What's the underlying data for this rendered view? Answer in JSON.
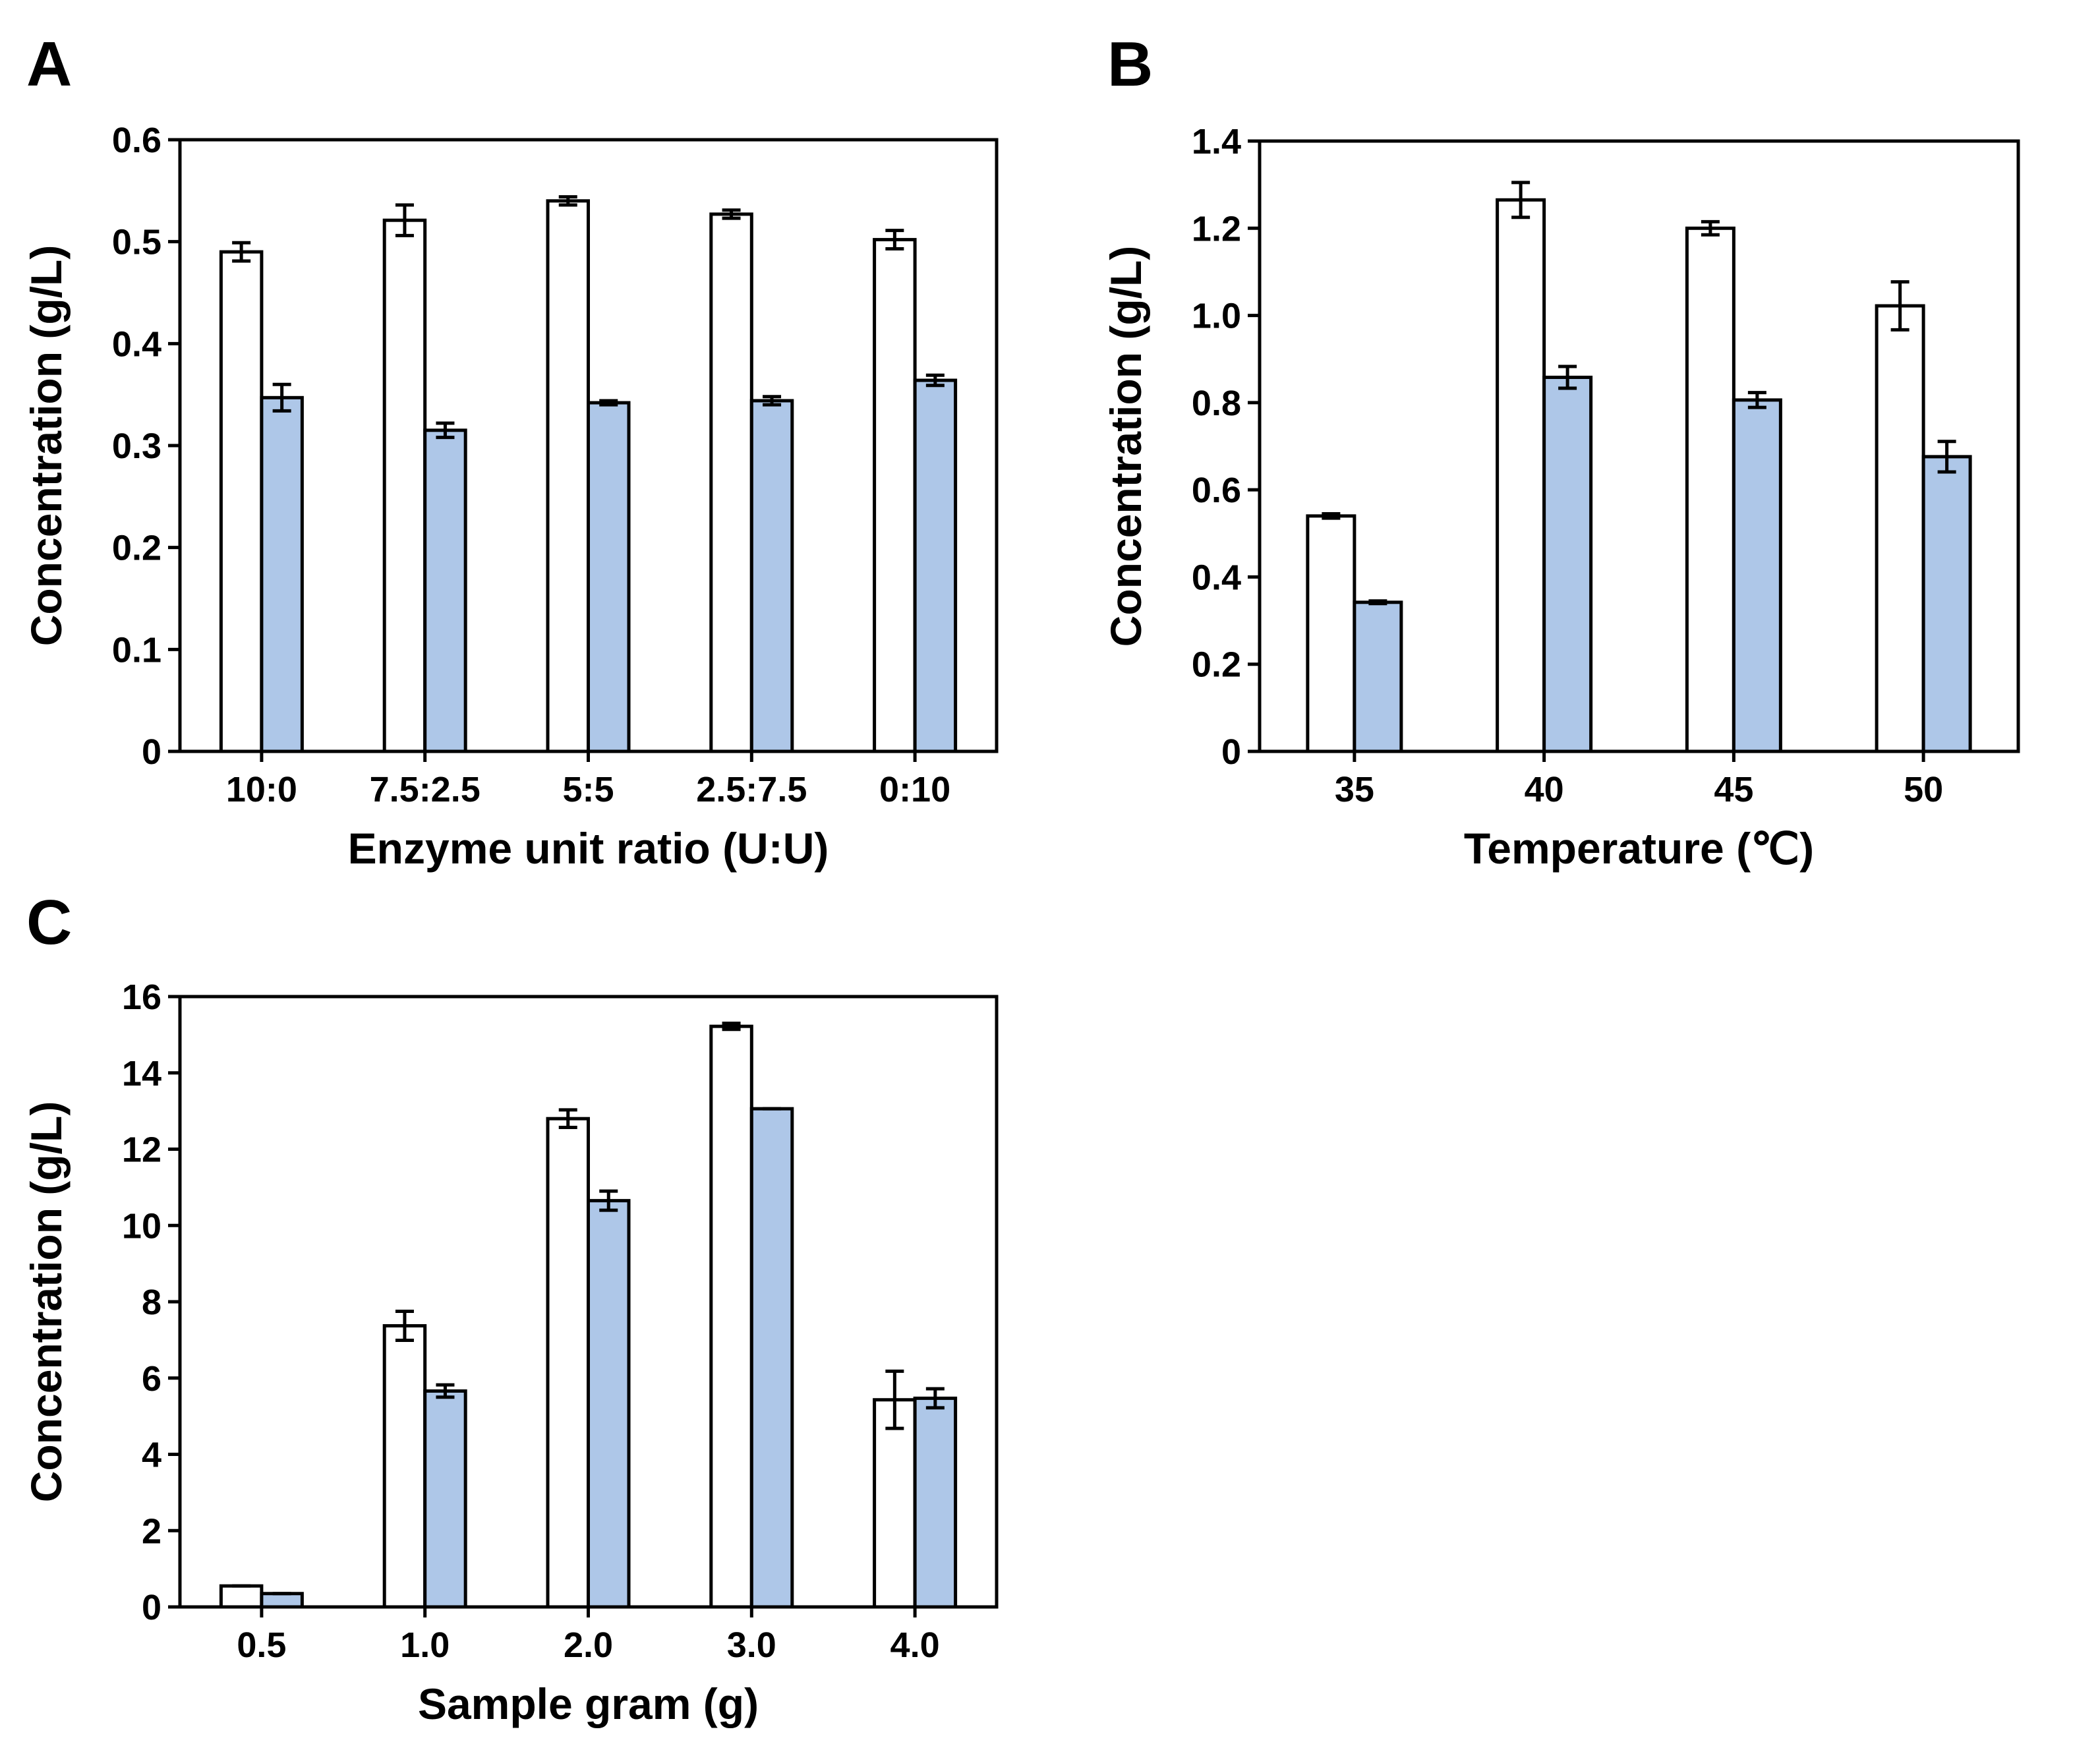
{
  "figure": {
    "colors": {
      "series_1": "#ffffff",
      "series_2": "#aec7e8",
      "stroke": "#000000"
    }
  },
  "chart_data": [
    {
      "id": "A",
      "panel_label": "A",
      "type": "bar",
      "xlabel": "Enzyme unit ratio (U:U)",
      "ylabel": "Concentration (g/L)",
      "categories": [
        "10:0",
        "7.5:2.5",
        "5:5",
        "2.5:7.5",
        "0:10"
      ],
      "ylim": [
        0,
        0.6
      ],
      "yticks": [
        0,
        0.1,
        0.2,
        0.3,
        0.4,
        0.5,
        0.6
      ],
      "ytick_labels": [
        "0",
        "0.1",
        "0.2",
        "0.3",
        "0.4",
        "0.5",
        "0.6"
      ],
      "series": [
        {
          "name": "",
          "color": "#ffffff",
          "values": [
            0.49,
            0.521,
            0.54,
            0.527,
            0.502
          ],
          "errors": [
            0.009,
            0.015,
            0.004,
            0.004,
            0.009
          ]
        },
        {
          "name": "",
          "color": "#aec7e8",
          "values": [
            0.347,
            0.315,
            0.342,
            0.344,
            0.364
          ],
          "errors": [
            0.013,
            0.007,
            0.002,
            0.004,
            0.005
          ]
        }
      ]
    },
    {
      "id": "B",
      "panel_label": "B",
      "type": "bar",
      "xlabel": "Temperature (℃)",
      "ylabel": "Concentration (g/L)",
      "categories": [
        "35",
        "40",
        "45",
        "50"
      ],
      "ylim": [
        0,
        1.4
      ],
      "yticks": [
        0,
        0.2,
        0.4,
        0.6,
        0.8,
        1.0,
        1.2,
        1.4
      ],
      "ytick_labels": [
        "0",
        "0.2",
        "0.4",
        "0.6",
        "0.8",
        "1.0",
        "1.2",
        "1.4"
      ],
      "series": [
        {
          "name": "",
          "color": "#ffffff",
          "values": [
            0.54,
            1.265,
            1.2,
            1.022
          ],
          "errors": [
            0.005,
            0.04,
            0.015,
            0.055
          ]
        },
        {
          "name": "",
          "color": "#aec7e8",
          "values": [
            0.342,
            0.858,
            0.806,
            0.676
          ],
          "errors": [
            0.003,
            0.025,
            0.017,
            0.035
          ]
        }
      ]
    },
    {
      "id": "C",
      "panel_label": "C",
      "type": "bar",
      "xlabel": "Sample gram (g)",
      "ylabel": "Concentration (g/L)",
      "categories": [
        "0.5",
        "1.0",
        "2.0",
        "3.0",
        "4.0"
      ],
      "ylim": [
        0,
        16
      ],
      "yticks": [
        0,
        2,
        4,
        6,
        8,
        10,
        12,
        14,
        16
      ],
      "ytick_labels": [
        "0",
        "2",
        "4",
        "6",
        "8",
        "10",
        "12",
        "14",
        "16"
      ],
      "series": [
        {
          "name": "",
          "color": "#ffffff",
          "values": [
            0.55,
            7.37,
            12.8,
            15.22,
            5.43
          ],
          "errors": [
            0.0,
            0.38,
            0.23,
            0.08,
            0.75
          ]
        },
        {
          "name": "",
          "color": "#aec7e8",
          "values": [
            0.35,
            5.66,
            10.65,
            13.06,
            5.47
          ],
          "errors": [
            0.0,
            0.16,
            0.25,
            0.0,
            0.25
          ]
        }
      ]
    }
  ]
}
